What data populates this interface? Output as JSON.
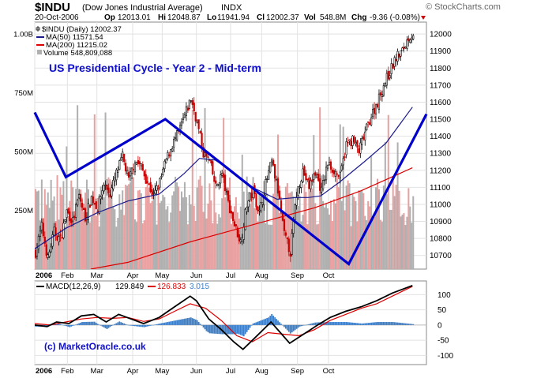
{
  "header": {
    "symbol": "$INDU",
    "name": "(Dow Jones Industrial Average)",
    "exchange": "INDX",
    "watermark": "© StockCharts.com",
    "date": "20-Oct-2006",
    "op_label": "Op",
    "op": "12013.01",
    "hi_label": "Hi",
    "hi": "12048.87",
    "lo_label": "Lo",
    "lo": "11941.94",
    "cl_label": "Cl",
    "cl": "12002.37",
    "vol_label": "Vol",
    "vol": "548.8M",
    "chg_label": "Chg",
    "chg": "-9.36 (-0.08%)"
  },
  "legend": {
    "price": "$INDU (Daily) 12002.37",
    "ma50": "MA(50) 11571.54",
    "ma200": "MA(200) 11215.02",
    "volume": "Volume 548,809,088"
  },
  "annotations": {
    "title": "US Presidential Cycle - Year 2 - Mid-term",
    "credit": "(c) MarketOracle.co.uk"
  },
  "macd_legend": {
    "label": "MACD(12,26,9)",
    "macd": "129.849",
    "signal": "126.833",
    "hist": "3.015"
  },
  "colors": {
    "up_candle": "#000000",
    "down_candle": "#cc0000",
    "ma50": "#1a1a8c",
    "ma200": "#dd0000",
    "overlay": "#0000cc",
    "annotation": "#1010cc",
    "volume_up": "#b0b0b0",
    "volume_down": "#e8a0a0",
    "macd_line": "#000000",
    "signal_line": "#dd0000",
    "histogram": "#3c7ec8"
  },
  "chart_data": {
    "type": "line",
    "x_tick_labels": [
      "2006",
      "Feb",
      "Mar",
      "Apr",
      "May",
      "Jun",
      "Jul",
      "Aug",
      "Sep",
      "Oct"
    ],
    "price_panel": {
      "y_ticks": [
        10700,
        10800,
        10900,
        11000,
        11100,
        11200,
        11300,
        11400,
        11500,
        11600,
        11700,
        11800,
        11900,
        12000
      ],
      "ylim": [
        10620,
        12070
      ],
      "volume_ticks": [
        {
          "label": "250M",
          "value": 250
        },
        {
          "label": "500M",
          "value": 500
        },
        {
          "label": "750M",
          "value": 750
        },
        {
          "label": "1.00B",
          "value": 1000
        }
      ],
      "volume_max": 1050,
      "close_points": [
        [
          0,
          10718
        ],
        [
          4,
          10870
        ],
        [
          8,
          10680
        ],
        [
          12,
          10840
        ],
        [
          16,
          10790
        ],
        [
          20,
          10960
        ],
        [
          24,
          10900
        ],
        [
          28,
          11050
        ],
        [
          32,
          10920
        ],
        [
          36,
          11040
        ],
        [
          40,
          10980
        ],
        [
          44,
          11120
        ],
        [
          48,
          11060
        ],
        [
          52,
          11180
        ],
        [
          56,
          11280
        ],
        [
          60,
          11140
        ],
        [
          64,
          11260
        ],
        [
          68,
          11220
        ],
        [
          72,
          11130
        ],
        [
          76,
          11050
        ],
        [
          80,
          11130
        ],
        [
          84,
          11260
        ],
        [
          88,
          11350
        ],
        [
          92,
          11420
        ],
        [
          96,
          11520
        ],
        [
          100,
          11620
        ],
        [
          104,
          11480
        ],
        [
          108,
          11300
        ],
        [
          112,
          11250
        ],
        [
          116,
          11100
        ],
        [
          120,
          11180
        ],
        [
          124,
          11010
        ],
        [
          128,
          10880
        ],
        [
          132,
          10780
        ],
        [
          136,
          11000
        ],
        [
          140,
          11080
        ],
        [
          144,
          10950
        ],
        [
          148,
          11120
        ],
        [
          152,
          11250
        ],
        [
          156,
          11080
        ],
        [
          160,
          10820
        ],
        [
          164,
          10720
        ],
        [
          168,
          11060
        ],
        [
          172,
          11200
        ],
        [
          176,
          11100
        ],
        [
          180,
          11190
        ],
        [
          184,
          11080
        ],
        [
          188,
          11240
        ],
        [
          192,
          11200
        ],
        [
          196,
          11160
        ],
        [
          200,
          11350
        ],
        [
          204,
          11380
        ],
        [
          208,
          11310
        ],
        [
          212,
          11420
        ],
        [
          216,
          11520
        ],
        [
          220,
          11600
        ],
        [
          224,
          11700
        ],
        [
          228,
          11780
        ],
        [
          232,
          11860
        ],
        [
          236,
          11900
        ],
        [
          240,
          11980
        ],
        [
          243,
          12002
        ]
      ],
      "ma50": [
        [
          0,
          10740
        ],
        [
          20,
          10860
        ],
        [
          40,
          10950
        ],
        [
          60,
          11020
        ],
        [
          80,
          11060
        ],
        [
          96,
          11180
        ],
        [
          106,
          11270
        ],
        [
          116,
          11260
        ],
        [
          126,
          11200
        ],
        [
          140,
          11100
        ],
        [
          156,
          11030
        ],
        [
          168,
          11040
        ],
        [
          176,
          11040
        ],
        [
          184,
          11050
        ],
        [
          196,
          11130
        ],
        [
          212,
          11250
        ],
        [
          226,
          11360
        ],
        [
          243,
          11571
        ]
      ],
      "ma200": [
        [
          36,
          10620
        ],
        [
          60,
          10660
        ],
        [
          100,
          10780
        ],
        [
          140,
          10880
        ],
        [
          180,
          10980
        ],
        [
          210,
          11080
        ],
        [
          243,
          11215
        ]
      ],
      "overlay_trendlines": [
        [
          0,
          11540
        ],
        [
          20,
          11160
        ],
        [
          84,
          11500
        ],
        [
          202,
          10650
        ],
        [
          252,
          11530
        ]
      ]
    },
    "macd_panel": {
      "y_ticks": [
        -100,
        -50,
        0,
        50,
        100
      ],
      "ylim": [
        -130,
        145
      ],
      "macd": [
        [
          0,
          0
        ],
        [
          8,
          -5
        ],
        [
          14,
          10
        ],
        [
          22,
          5
        ],
        [
          30,
          30
        ],
        [
          38,
          35
        ],
        [
          46,
          10
        ],
        [
          54,
          35
        ],
        [
          62,
          20
        ],
        [
          70,
          5
        ],
        [
          80,
          25
        ],
        [
          90,
          60
        ],
        [
          100,
          95
        ],
        [
          104,
          80
        ],
        [
          112,
          20
        ],
        [
          120,
          -15
        ],
        [
          128,
          -55
        ],
        [
          134,
          -80
        ],
        [
          140,
          -50
        ],
        [
          146,
          -20
        ],
        [
          152,
          10
        ],
        [
          158,
          -25
        ],
        [
          164,
          -60
        ],
        [
          170,
          -40
        ],
        [
          176,
          -20
        ],
        [
          182,
          0
        ],
        [
          190,
          25
        ],
        [
          200,
          45
        ],
        [
          210,
          60
        ],
        [
          220,
          80
        ],
        [
          230,
          105
        ],
        [
          243,
          130
        ]
      ],
      "signal": [
        [
          0,
          5
        ],
        [
          10,
          0
        ],
        [
          20,
          10
        ],
        [
          30,
          20
        ],
        [
          40,
          25
        ],
        [
          50,
          22
        ],
        [
          60,
          25
        ],
        [
          70,
          12
        ],
        [
          80,
          20
        ],
        [
          90,
          45
        ],
        [
          100,
          70
        ],
        [
          110,
          55
        ],
        [
          120,
          15
        ],
        [
          130,
          -35
        ],
        [
          140,
          -55
        ],
        [
          150,
          -25
        ],
        [
          160,
          -30
        ],
        [
          170,
          -35
        ],
        [
          180,
          -15
        ],
        [
          190,
          15
        ],
        [
          200,
          35
        ],
        [
          210,
          55
        ],
        [
          220,
          70
        ],
        [
          230,
          95
        ],
        [
          243,
          127
        ]
      ]
    }
  }
}
